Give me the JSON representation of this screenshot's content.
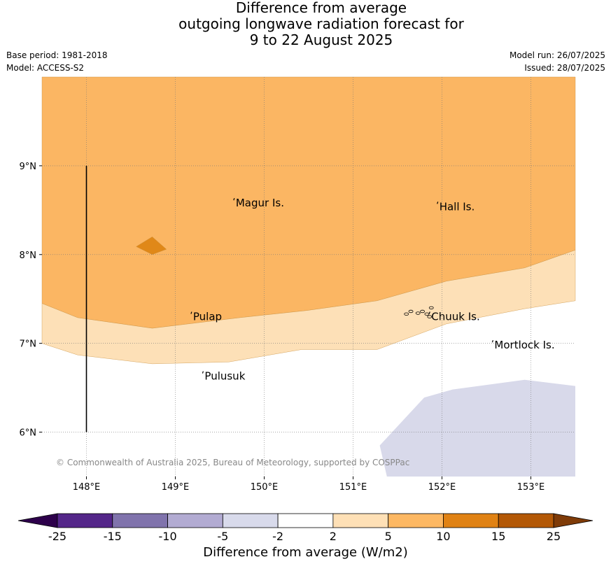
{
  "header": {
    "title_lines": [
      "Difference from average",
      "outgoing longwave radiation forecast for",
      "9 to 22 August 2025"
    ],
    "base_period": "Base period: 1981-2018",
    "model": "Model: ACCESS-S2",
    "model_run": "Model run: 26/07/2025",
    "issued": "Issued: 28/07/2025"
  },
  "chart_data": {
    "type": "map-contour",
    "title": "Difference from average outgoing longwave radiation forecast for 9 to 22 August 2025",
    "x_axis": {
      "range": [
        147.5,
        153.5
      ],
      "ticks": [
        148,
        149,
        150,
        151,
        152,
        153
      ],
      "tick_labels": [
        "148°E",
        "149°E",
        "150°E",
        "151°E",
        "152°E",
        "153°E"
      ]
    },
    "y_axis": {
      "range": [
        5.5,
        10.0
      ],
      "ticks": [
        6,
        7,
        8,
        9
      ],
      "tick_labels": [
        "6°N",
        "7°N",
        "8°N",
        "9°N"
      ]
    },
    "grid": true,
    "places": [
      {
        "name": "Magur Is.",
        "lon": 149.68,
        "lat": 8.58
      },
      {
        "name": "Hall Is.",
        "lon": 151.97,
        "lat": 8.54
      },
      {
        "name": "Pulap",
        "lon": 149.2,
        "lat": 7.3
      },
      {
        "name": "Chuuk Is.",
        "lon": 151.88,
        "lat": 7.3
      },
      {
        "name": "Mortlock Is.",
        "lon": 152.59,
        "lat": 6.98
      },
      {
        "name": "Pulusuk",
        "lon": 149.33,
        "lat": 6.63
      }
    ],
    "regions": [
      {
        "category": "5 to 10",
        "color": "#fbb663",
        "polygon": [
          [
            147.5,
            10.0
          ],
          [
            153.5,
            10.0
          ],
          [
            153.5,
            8.05
          ],
          [
            152.93,
            7.85
          ],
          [
            152.05,
            7.7
          ],
          [
            151.27,
            7.48
          ],
          [
            150.48,
            7.37
          ],
          [
            149.73,
            7.29
          ],
          [
            148.74,
            7.17
          ],
          [
            147.9,
            7.29
          ],
          [
            147.5,
            7.45
          ]
        ]
      },
      {
        "category": "2 to 5",
        "color": "#fde0b7",
        "polygon": [
          [
            147.5,
            7.45
          ],
          [
            147.9,
            7.29
          ],
          [
            148.74,
            7.17
          ],
          [
            149.73,
            7.29
          ],
          [
            150.48,
            7.37
          ],
          [
            151.27,
            7.48
          ],
          [
            152.05,
            7.7
          ],
          [
            152.93,
            7.85
          ],
          [
            153.5,
            8.05
          ],
          [
            153.5,
            7.48
          ],
          [
            152.93,
            7.39
          ],
          [
            152.05,
            7.22
          ],
          [
            151.27,
            6.93
          ],
          [
            150.42,
            6.93
          ],
          [
            149.6,
            6.79
          ],
          [
            148.74,
            6.77
          ],
          [
            147.9,
            6.87
          ],
          [
            147.5,
            7.0
          ]
        ]
      },
      {
        "category": "10 to 15",
        "color": "#e08818",
        "polygon": [
          [
            148.56,
            8.09
          ],
          [
            148.74,
            8.2
          ],
          [
            148.9,
            8.06
          ],
          [
            148.74,
            8.0
          ]
        ]
      },
      {
        "category": "-5 to -2",
        "color": "#d8d9ea",
        "polygon": [
          [
            151.3,
            5.85
          ],
          [
            151.8,
            6.39
          ],
          [
            152.12,
            6.48
          ],
          [
            152.93,
            6.59
          ],
          [
            153.5,
            6.52
          ],
          [
            153.5,
            5.5
          ],
          [
            151.38,
            5.5
          ]
        ]
      }
    ],
    "track_line": {
      "lon": 148.0,
      "lat": [
        6.0,
        9.0
      ]
    },
    "copyright": "© Commonwealth of Australia 2025, Bureau of Meteorology, supported by COSPPac",
    "colorbar": {
      "label": "Difference from average (W/m2)",
      "boundaries": [
        "-25",
        "-15",
        "-10",
        "-5",
        "-2",
        "2",
        "5",
        "10",
        "15",
        "25"
      ],
      "colors": [
        "#542689",
        "#8073ac",
        "#b2abd2",
        "#d8daeb",
        "#ffffff",
        "#fee0b6",
        "#fdb863",
        "#e08214",
        "#b35806"
      ],
      "under_color": "#2d004b",
      "over_color": "#7f3b08"
    }
  }
}
